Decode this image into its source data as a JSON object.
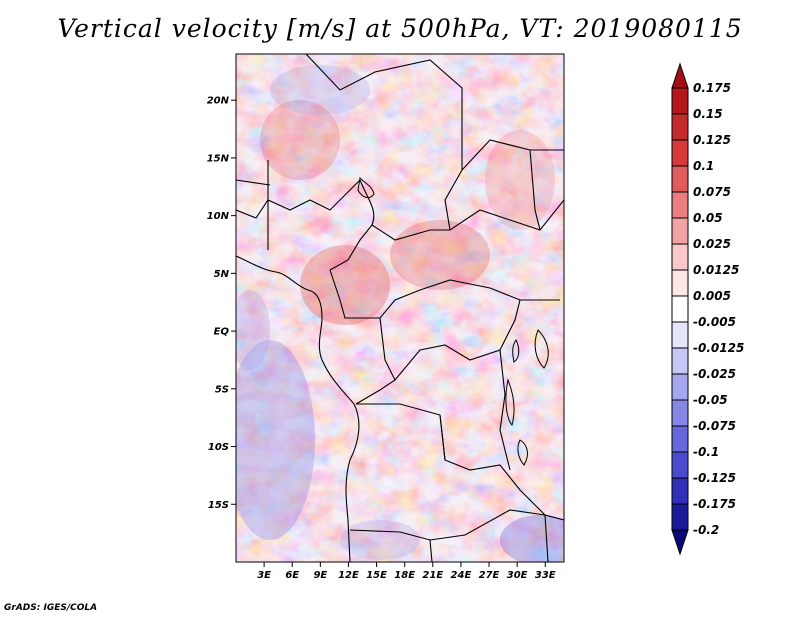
{
  "title": "Vertical velocity [m/s] at 500hPa, VT: 2019080115",
  "credit": "GrADS: IGES/COLA",
  "map": {
    "region": "Central Africa",
    "lon_range": [
      0,
      35
    ],
    "lat_range": [
      -20,
      24
    ],
    "lat_labels": [
      "20N",
      "15N",
      "10N",
      "5N",
      "EQ",
      "5S",
      "10S",
      "15S"
    ],
    "lat_values": [
      20,
      15,
      10,
      5,
      0,
      -5,
      -10,
      -15
    ],
    "lon_labels": [
      "3E",
      "6E",
      "9E",
      "12E",
      "15E",
      "18E",
      "21E",
      "24E",
      "27E",
      "30E",
      "33E"
    ],
    "lon_values": [
      3,
      6,
      9,
      12,
      15,
      18,
      21,
      24,
      27,
      30,
      33
    ]
  },
  "colorbar": {
    "labels": [
      "0.175",
      "0.15",
      "0.125",
      "0.1",
      "0.075",
      "0.05",
      "0.025",
      "0.0125",
      "0.005",
      "-0.005",
      "-0.0125",
      "-0.025",
      "-0.05",
      "-0.075",
      "-0.1",
      "-0.125",
      "-0.175",
      "-0.2"
    ],
    "colors": [
      "#a50f15",
      "#b5171b",
      "#c52a2a",
      "#d63a3a",
      "#e05b5b",
      "#ea7e7e",
      "#f3a3a3",
      "#f9c8c8",
      "#fde6e6",
      "#ffffff",
      "#e6e6fb",
      "#c8c8f6",
      "#a6a6ef",
      "#8686e6",
      "#6868dc",
      "#4b4bcf",
      "#3030b8",
      "#1a1a9a",
      "#0a0a7a"
    ]
  }
}
